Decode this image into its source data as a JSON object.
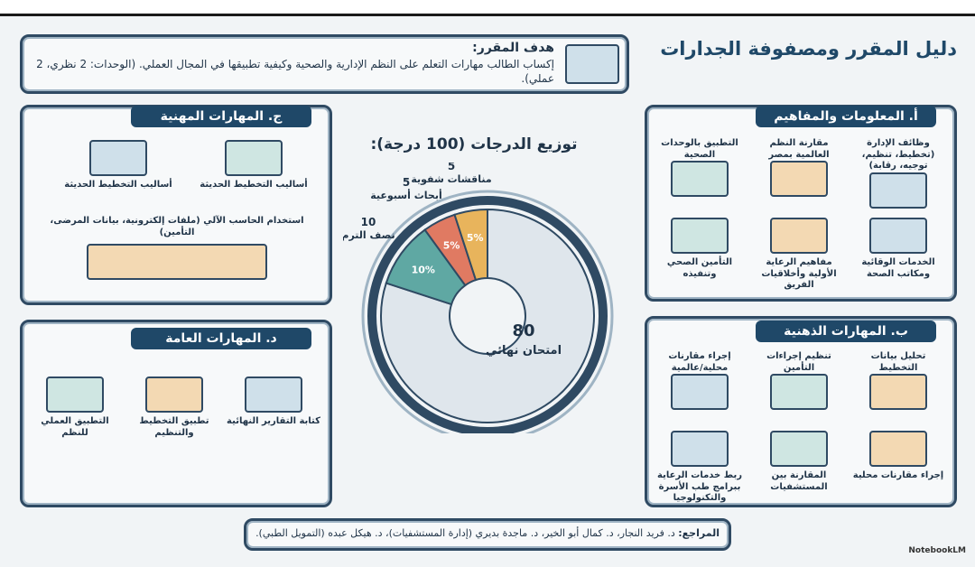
{
  "header": {
    "title": "دليل المقرر ومصفوفة الجدارات",
    "brand": "NotebookLM"
  },
  "objective": {
    "title": "هدف المقرر:",
    "text": "إكساب الطالب مهارات التعلم على النظم الإدارية والصحية وكيفية تطبيقها في المجال العملي. (الوحدات: 2 نظري، 2 عملي)."
  },
  "grades": {
    "title": "توزيع الدرجات (100 درجة):",
    "items": [
      {
        "name": "امتحان نهائي",
        "value": 80,
        "color": "#dfe6ec"
      },
      {
        "name": "نصف الترم",
        "value": 10,
        "value_label": "10%",
        "color": "#5fa8a3"
      },
      {
        "name": "أبحاث أسبوعية",
        "value": 5,
        "value_label": "5%",
        "color": "#e07a62"
      },
      {
        "name": "مناقشات شفوية",
        "value": 5,
        "value_label": "5%",
        "color": "#e8b45c"
      }
    ]
  },
  "sections": [
    {
      "title": "أ. المعلومات والمفاهيم",
      "items": [
        "وظائف الإدارة (تخطيط، تنظيم، توجيه، رقابة)",
        "مقارنة النظم العالمية بمصر",
        "التطبيق بالوحدات الصحية",
        "الخدمات الوقائية ومكاتب الصحة",
        "مفاهيم الرعاية الأولية وأخلاقيات الفريق",
        "التأمين الصحي وتنفيذه"
      ]
    },
    {
      "title": "ب. المهارات الذهنية",
      "items": [
        "تحليل بيانات التخطيط",
        "تنظيم إجراءات التأمين",
        "إجراء مقارنات محلية/عالمية",
        "إجراء مقارنات محلية",
        "المقارنة بين المستشفيات",
        "ربط خدمات الرعاية ببرامج طب الأسرة والتكنولوجيا"
      ]
    },
    {
      "title": "ج. المهارات المهنية",
      "items": [
        "أساليب التخطيط الحديثة",
        "أساليب التخطيط الحديثة",
        "استخدام الحاسب الآلي (ملفات إلكترونية، بيانات المرضى، التأمين)"
      ]
    },
    {
      "title": "د. المهارات العامة",
      "items": [
        "كتابة التقارير النهائية",
        "تطبيق التخطيط والتنظيم",
        "التطبيق العملي للنظم"
      ]
    }
  ],
  "references": {
    "title": "المراجع:",
    "text": "د. فريد النجار، د. كمال أبو الخير، د. ماجدة بديري (إدارة المستشفيات)، د. هيكل عبده (التمويل الطبي)."
  }
}
